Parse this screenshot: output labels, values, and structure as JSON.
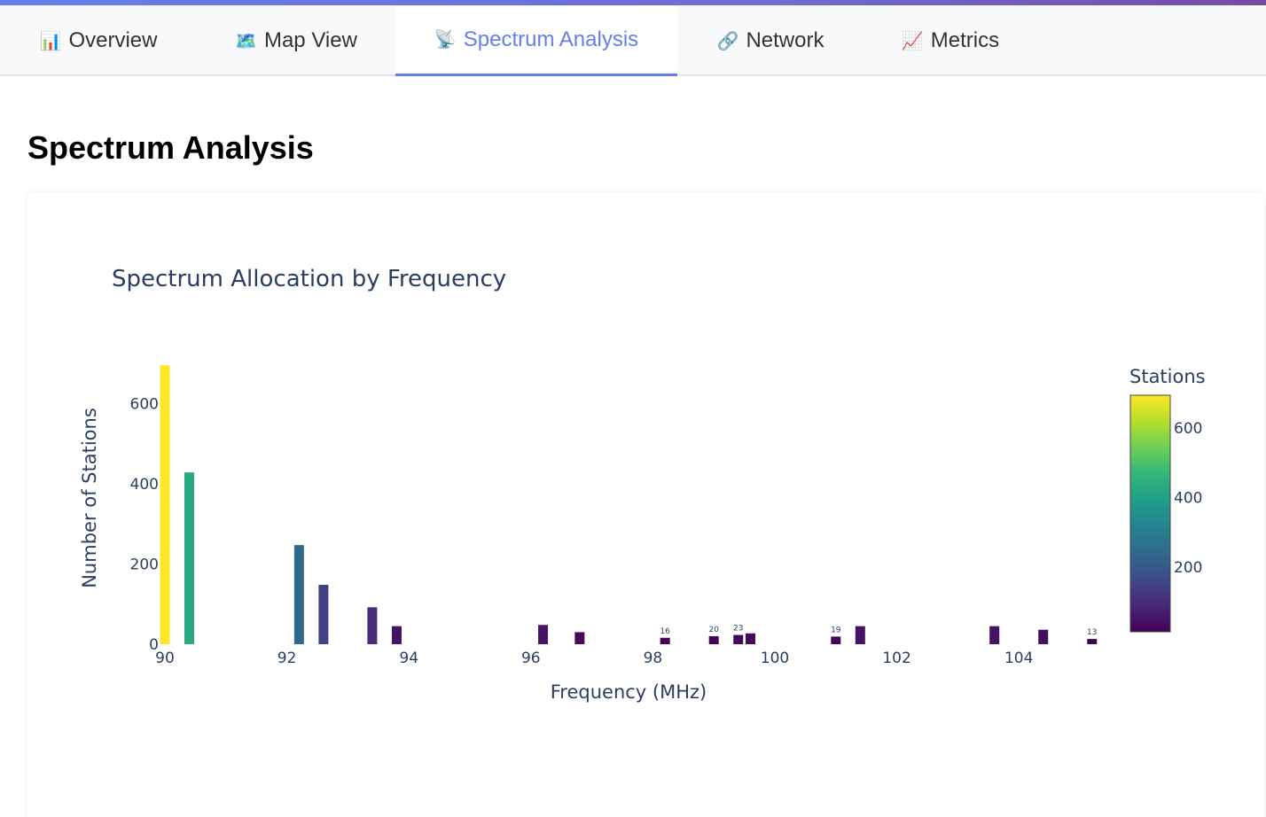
{
  "tabs": [
    {
      "icon": "📊",
      "icon_name": "bar-chart-icon",
      "label": "Overview"
    },
    {
      "icon": "🗺️",
      "icon_name": "map-icon",
      "label": "Map View"
    },
    {
      "icon": "📡",
      "icon_name": "satellite-dish-icon",
      "label": "Spectrum Analysis",
      "active": true
    },
    {
      "icon": "🔗",
      "icon_name": "link-icon",
      "label": "Network"
    },
    {
      "icon": "📈",
      "icon_name": "line-chart-icon",
      "label": "Metrics"
    }
  ],
  "page": {
    "title": "Spectrum Analysis"
  },
  "colors": {
    "accent": "#667eea",
    "tab_bg": "#f8f9fa",
    "text": "#2a3f5f"
  },
  "chart_data": {
    "type": "bar",
    "title": "Spectrum Allocation by Frequency",
    "xlabel": "Frequency (MHz)",
    "ylabel": "Number of Stations",
    "xlim": [
      89.8,
      105.6
    ],
    "ylim": [
      0,
      700
    ],
    "xticks": [
      90,
      92,
      94,
      96,
      98,
      100,
      102,
      104
    ],
    "yticks": [
      0,
      200,
      400,
      600
    ],
    "colorbar": {
      "title": "Stations",
      "ticks": [
        200,
        400,
        600
      ],
      "range": [
        13,
        695
      ],
      "colorscale": "Viridis"
    },
    "grid": false,
    "x": [
      90.0,
      90.4,
      92.2,
      92.6,
      93.4,
      93.8,
      96.2,
      96.8,
      98.2,
      99.0,
      99.4,
      99.6,
      101.0,
      101.4,
      103.6,
      104.4,
      105.2
    ],
    "values": [
      695,
      428,
      247,
      148,
      92,
      45,
      48,
      30,
      16,
      20,
      23,
      27,
      19,
      45,
      45,
      36,
      13
    ],
    "data_labels": [
      "",
      "",
      "",
      "",
      "",
      "",
      "",
      "",
      "16",
      "20",
      "23",
      "",
      "19",
      "",
      "",
      "",
      "13"
    ]
  }
}
